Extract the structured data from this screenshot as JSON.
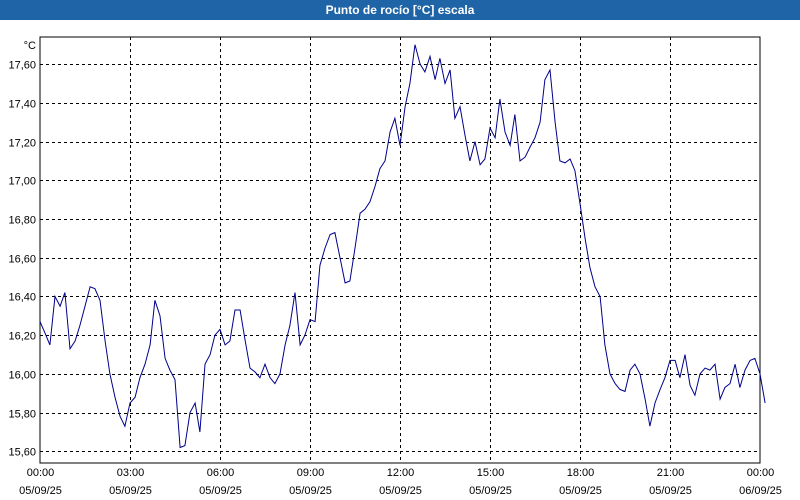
{
  "colors": {
    "title_bg": "#1f64a6",
    "title_fg": "#ffffff",
    "line": "#00008b",
    "grid": "#000000"
  },
  "chart_data": {
    "type": "line",
    "title": "Punto de rocío [°C] escala",
    "ylabel": "°C",
    "xlabel": "",
    "grid": true,
    "ylim": [
      15.54,
      17.74
    ],
    "yticks": [
      "15,60",
      "15,80",
      "16,00",
      "16,20",
      "16,40",
      "16,60",
      "16,80",
      "17,00",
      "17,20",
      "17,40",
      "17,60"
    ],
    "xticks": [
      {
        "time": "00:00",
        "date": "05/09/25"
      },
      {
        "time": "03:00",
        "date": "05/09/25"
      },
      {
        "time": "06:00",
        "date": "05/09/25"
      },
      {
        "time": "09:00",
        "date": "05/09/25"
      },
      {
        "time": "12:00",
        "date": "05/09/25"
      },
      {
        "time": "15:00",
        "date": "05/09/25"
      },
      {
        "time": "18:00",
        "date": "05/09/25"
      },
      {
        "time": "21:00",
        "date": "05/09/25"
      },
      {
        "time": "00:00",
        "date": "06/09/25"
      }
    ],
    "x_hours_range": [
      0,
      24
    ],
    "series": [
      {
        "name": "",
        "points": [
          [
            0.0,
            16.27
          ],
          [
            0.17,
            16.21
          ],
          [
            0.33,
            16.15
          ],
          [
            0.5,
            16.4
          ],
          [
            0.67,
            16.35
          ],
          [
            0.83,
            16.42
          ],
          [
            1.0,
            16.13
          ],
          [
            1.17,
            16.17
          ],
          [
            1.33,
            16.25
          ],
          [
            1.5,
            16.35
          ],
          [
            1.67,
            16.45
          ],
          [
            1.83,
            16.44
          ],
          [
            2.0,
            16.38
          ],
          [
            2.17,
            16.17
          ],
          [
            2.33,
            16.0
          ],
          [
            2.5,
            15.88
          ],
          [
            2.67,
            15.78
          ],
          [
            2.83,
            15.73
          ],
          [
            3.0,
            15.85
          ],
          [
            3.17,
            15.88
          ],
          [
            3.33,
            15.98
          ],
          [
            3.5,
            16.05
          ],
          [
            3.67,
            16.15
          ],
          [
            3.83,
            16.38
          ],
          [
            4.0,
            16.3
          ],
          [
            4.17,
            16.08
          ],
          [
            4.33,
            16.02
          ],
          [
            4.5,
            15.97
          ],
          [
            4.67,
            15.62
          ],
          [
            4.83,
            15.63
          ],
          [
            5.0,
            15.8
          ],
          [
            5.17,
            15.85
          ],
          [
            5.33,
            15.7
          ],
          [
            5.5,
            16.05
          ],
          [
            5.67,
            16.1
          ],
          [
            5.83,
            16.2
          ],
          [
            6.0,
            16.23
          ],
          [
            6.17,
            16.15
          ],
          [
            6.33,
            16.17
          ],
          [
            6.5,
            16.33
          ],
          [
            6.67,
            16.33
          ],
          [
            6.83,
            16.18
          ],
          [
            7.0,
            16.03
          ],
          [
            7.17,
            16.01
          ],
          [
            7.33,
            15.98
          ],
          [
            7.5,
            16.05
          ],
          [
            7.67,
            15.98
          ],
          [
            7.83,
            15.95
          ],
          [
            8.0,
            16.0
          ],
          [
            8.17,
            16.15
          ],
          [
            8.33,
            16.25
          ],
          [
            8.5,
            16.42
          ],
          [
            8.67,
            16.15
          ],
          [
            8.83,
            16.2
          ],
          [
            9.0,
            16.28
          ],
          [
            9.17,
            16.27
          ],
          [
            9.33,
            16.56
          ],
          [
            9.5,
            16.65
          ],
          [
            9.67,
            16.72
          ],
          [
            9.83,
            16.73
          ],
          [
            10.0,
            16.6
          ],
          [
            10.17,
            16.47
          ],
          [
            10.33,
            16.48
          ],
          [
            10.5,
            16.65
          ],
          [
            10.67,
            16.83
          ],
          [
            10.83,
            16.85
          ],
          [
            11.0,
            16.89
          ],
          [
            11.17,
            16.97
          ],
          [
            11.33,
            17.06
          ],
          [
            11.5,
            17.1
          ],
          [
            11.67,
            17.25
          ],
          [
            11.83,
            17.32
          ],
          [
            12.0,
            17.18
          ],
          [
            12.17,
            17.38
          ],
          [
            12.33,
            17.5
          ],
          [
            12.5,
            17.7
          ],
          [
            12.67,
            17.6
          ],
          [
            12.83,
            17.56
          ],
          [
            13.0,
            17.64
          ],
          [
            13.17,
            17.52
          ],
          [
            13.33,
            17.63
          ],
          [
            13.5,
            17.5
          ],
          [
            13.67,
            17.57
          ],
          [
            13.83,
            17.32
          ],
          [
            14.0,
            17.38
          ],
          [
            14.17,
            17.23
          ],
          [
            14.33,
            17.1
          ],
          [
            14.5,
            17.2
          ],
          [
            14.67,
            17.08
          ],
          [
            14.83,
            17.11
          ],
          [
            15.0,
            17.27
          ],
          [
            15.17,
            17.22
          ],
          [
            15.33,
            17.42
          ],
          [
            15.5,
            17.25
          ],
          [
            15.67,
            17.18
          ],
          [
            15.83,
            17.34
          ],
          [
            16.0,
            17.1
          ],
          [
            16.17,
            17.12
          ],
          [
            16.33,
            17.17
          ],
          [
            16.5,
            17.22
          ],
          [
            16.67,
            17.3
          ],
          [
            16.83,
            17.52
          ],
          [
            17.0,
            17.57
          ],
          [
            17.17,
            17.3
          ],
          [
            17.33,
            17.1
          ],
          [
            17.5,
            17.09
          ],
          [
            17.67,
            17.11
          ],
          [
            17.83,
            17.05
          ],
          [
            18.0,
            16.88
          ],
          [
            18.17,
            16.7
          ],
          [
            18.33,
            16.55
          ],
          [
            18.5,
            16.45
          ],
          [
            18.67,
            16.4
          ],
          [
            18.83,
            16.15
          ],
          [
            19.0,
            16.0
          ],
          [
            19.17,
            15.95
          ],
          [
            19.33,
            15.92
          ],
          [
            19.5,
            15.91
          ],
          [
            19.67,
            16.02
          ],
          [
            19.83,
            16.05
          ],
          [
            20.0,
            16.0
          ],
          [
            20.17,
            15.87
          ],
          [
            20.33,
            15.73
          ],
          [
            20.5,
            15.85
          ],
          [
            20.67,
            15.92
          ],
          [
            20.83,
            15.98
          ],
          [
            21.0,
            16.07
          ],
          [
            21.17,
            16.07
          ],
          [
            21.33,
            15.98
          ],
          [
            21.5,
            16.1
          ],
          [
            21.67,
            15.94
          ],
          [
            21.83,
            15.89
          ],
          [
            22.0,
            16.0
          ],
          [
            22.17,
            16.03
          ],
          [
            22.33,
            16.02
          ],
          [
            22.5,
            16.05
          ],
          [
            22.67,
            15.87
          ],
          [
            22.83,
            15.93
          ],
          [
            23.0,
            15.95
          ],
          [
            23.17,
            16.05
          ],
          [
            23.33,
            15.93
          ],
          [
            23.5,
            16.02
          ],
          [
            23.67,
            16.07
          ],
          [
            23.83,
            16.08
          ],
          [
            24.0,
            16.0
          ],
          [
            24.17,
            15.85
          ]
        ]
      }
    ]
  }
}
